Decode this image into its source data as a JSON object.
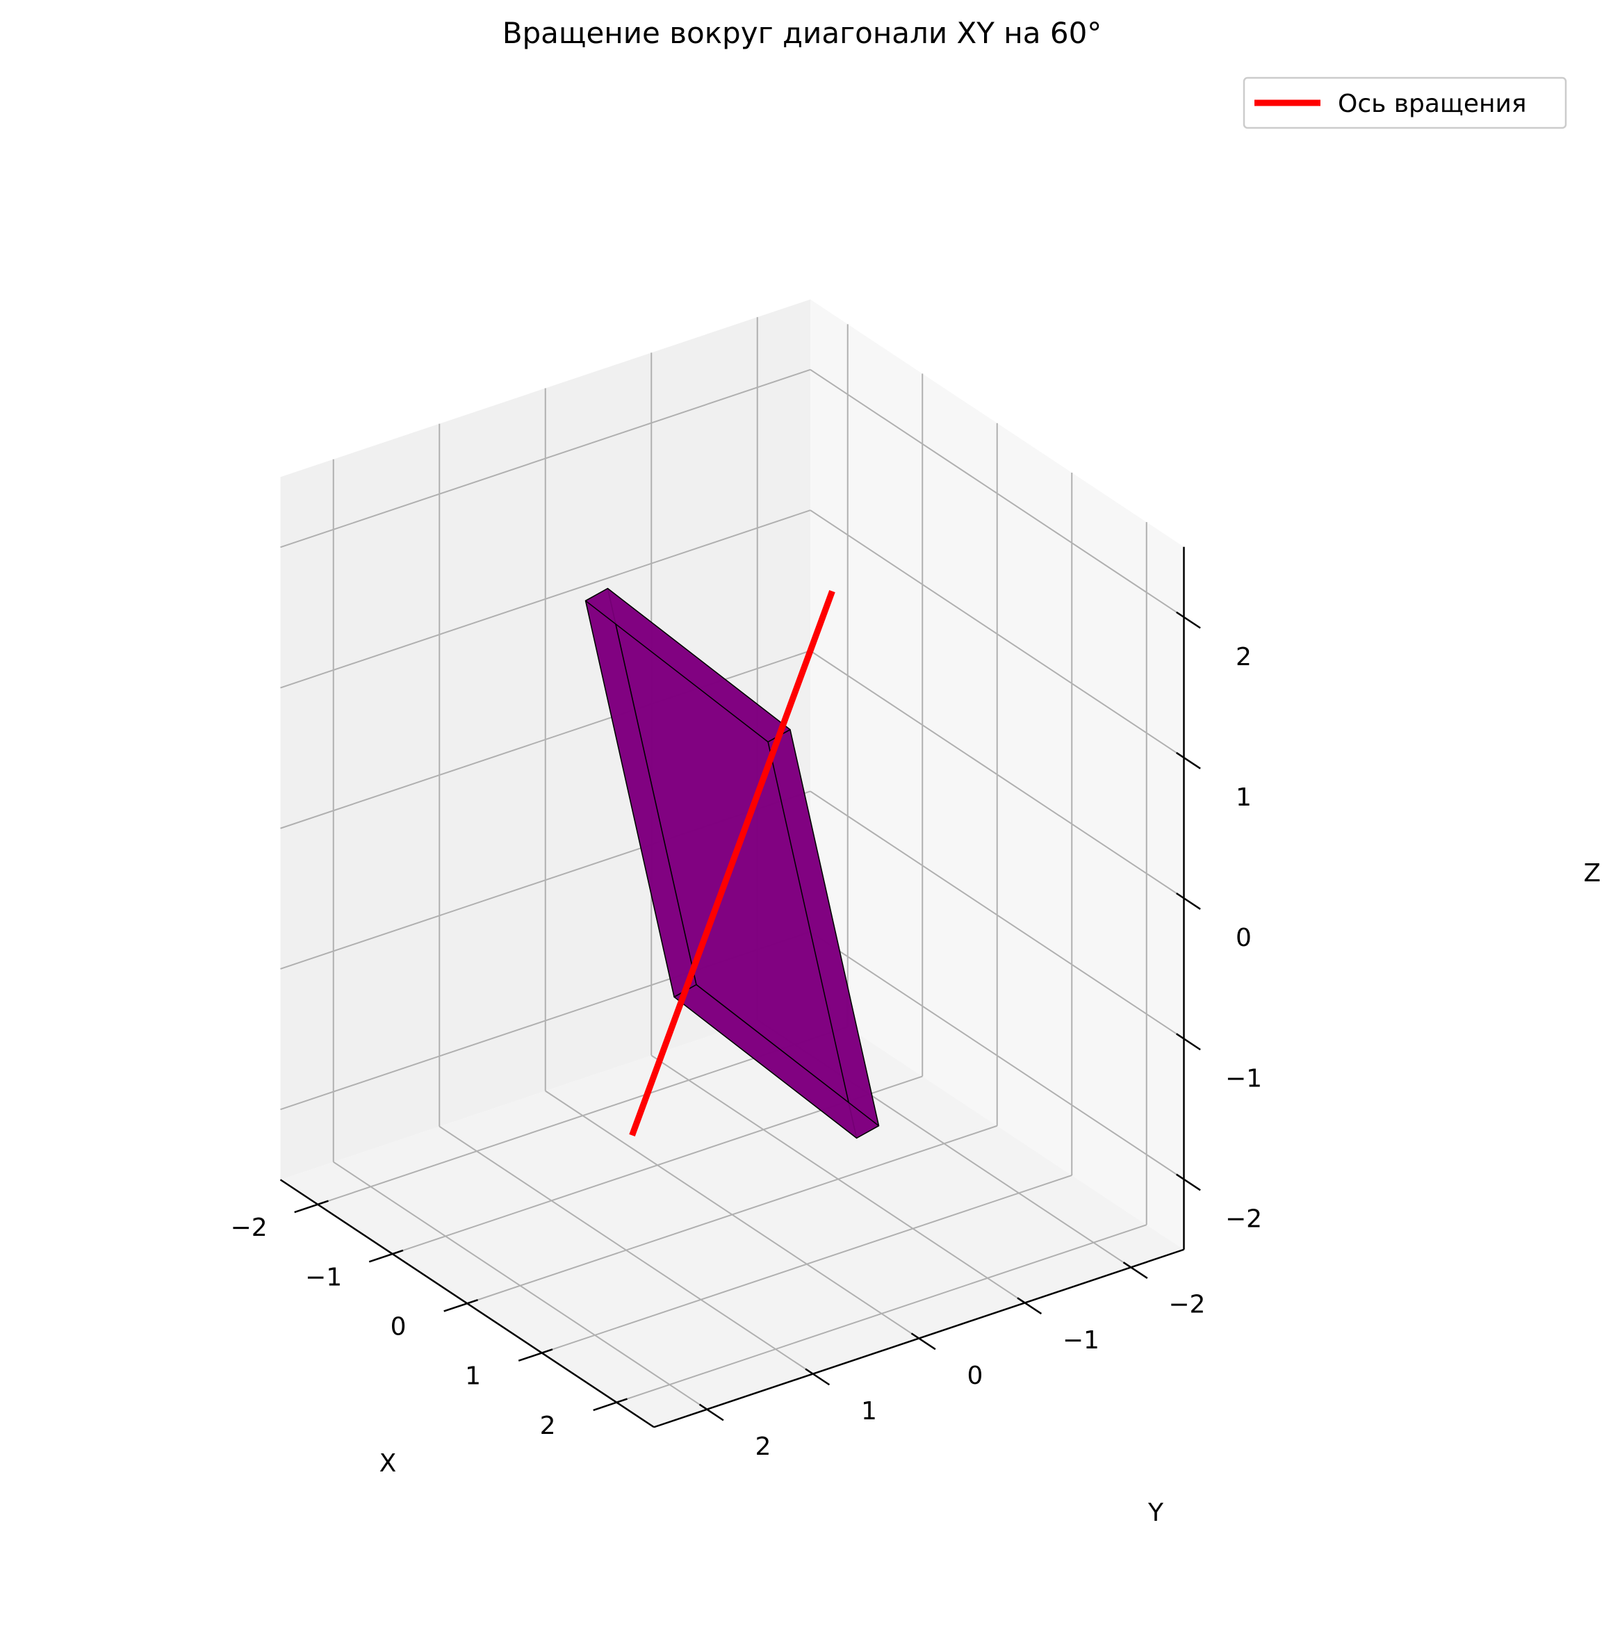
{
  "chart_data": {
    "type": "3d-surface",
    "title": "Вращение вокруг диагонали XY на 60°",
    "xlabel": "X",
    "ylabel": "Y",
    "zlabel": "Z",
    "xlim": [
      -2.5,
      2.5
    ],
    "ylim": [
      -2.5,
      2.5
    ],
    "zlim": [
      -2.5,
      2.5
    ],
    "xticks": [
      -2,
      -1,
      0,
      1,
      2
    ],
    "yticks": [
      -2,
      -1,
      0,
      1,
      2
    ],
    "zticks": [
      -2,
      -1,
      0,
      1,
      2
    ],
    "xtick_labels": [
      "−2",
      "−1",
      "0",
      "1",
      "2"
    ],
    "ytick_labels": [
      "−2",
      "−1",
      "0",
      "1",
      "2"
    ],
    "ztick_labels": [
      "−2",
      "−1",
      "0",
      "1",
      "2"
    ],
    "grid": true,
    "legend": {
      "position": "top-right",
      "entries": [
        {
          "label": "Ось вращения",
          "color": "#ff0000"
        }
      ]
    },
    "rotation_axis": {
      "name": "Ось вращения",
      "color": "#ff0000",
      "direction": [
        1,
        1,
        0
      ],
      "extent": [
        -3.2,
        3.2
      ]
    },
    "shape": {
      "type": "rotated-square-plate",
      "color": "#800080",
      "edge_color": "#000000",
      "half_side": 1.5,
      "thickness": 0.1,
      "rotation_axis": [
        1,
        1,
        0
      ],
      "rotation_deg": 60
    }
  },
  "colors": {
    "pane_left": "#f7f7f7",
    "pane_right": "#f0f0f0",
    "pane_floor": "#f3f3f3",
    "grid": "#b0b0b0"
  }
}
